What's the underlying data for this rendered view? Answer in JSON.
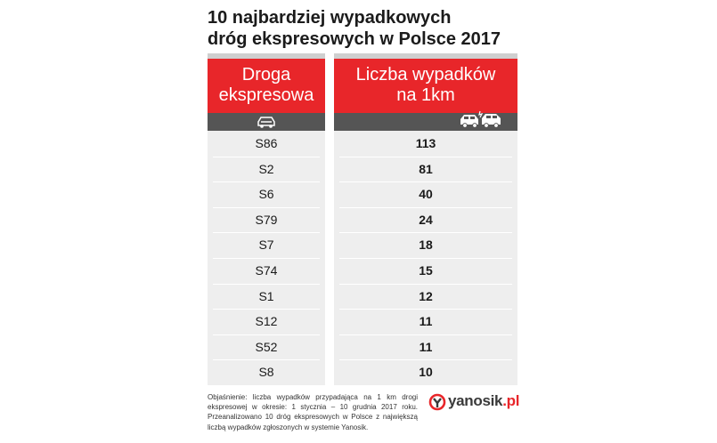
{
  "title": {
    "line1": "10 najbardziej wypadkowych",
    "line2": "dróg ekspresowych w Polsce 2017"
  },
  "table": {
    "left_header": {
      "line1": "Droga",
      "line2": "ekspresowa",
      "icon": "car-icon"
    },
    "right_header": {
      "line1": "Liczba wypadków",
      "line2": "na 1km",
      "icon": "car-crash-icon"
    },
    "rows": [
      {
        "road": "S86",
        "value": "113"
      },
      {
        "road": "S2",
        "value": "81"
      },
      {
        "road": "S6",
        "value": "40"
      },
      {
        "road": "S79",
        "value": "24"
      },
      {
        "road": "S7",
        "value": "18"
      },
      {
        "road": "S74",
        "value": "15"
      },
      {
        "road": "S1",
        "value": "12"
      },
      {
        "road": "S12",
        "value": "11"
      },
      {
        "road": "S52",
        "value": "11"
      },
      {
        "road": "S8",
        "value": "10"
      }
    ]
  },
  "footnote": "Objaśnienie: liczba wypadków przypadająca na 1 km drogi ekspresowej w okresie: 1 stycznia – 10 grudnia 2017 roku. Przeanalizowano 10 dróg ekspresowych w Polsce z największą liczbą wypadków zgłoszonych w systemie Yanosik.",
  "logo": {
    "name": "yanosik",
    "tld": "pl",
    "dot": ".",
    "icon": "yanosik-logo-icon"
  },
  "colors": {
    "accent": "#e8262a",
    "iconbar": "#555555",
    "rows_bg": "#eeeeee"
  }
}
